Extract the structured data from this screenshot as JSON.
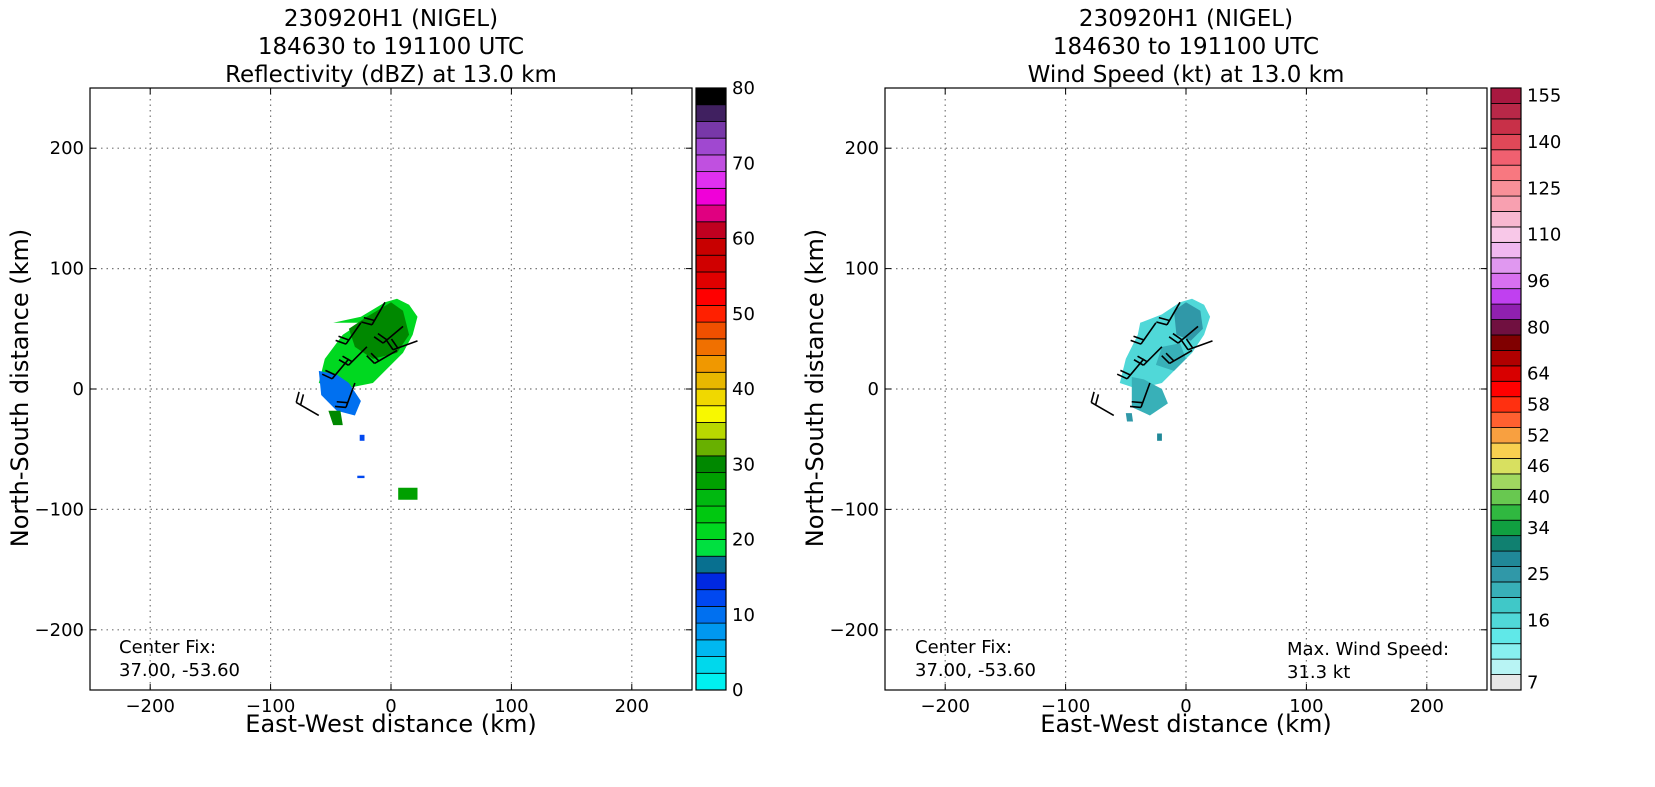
{
  "chart_data": [
    {
      "type": "heatmap",
      "title_lines": [
        "230920H1 (NIGEL)",
        "184630 to 191100 UTC",
        "Reflectivity (dBZ) at 13.0 km"
      ],
      "xlabel": "East-West distance (km)",
      "ylabel": "North-South distance (km)",
      "xlim": [
        -250,
        250
      ],
      "ylim": [
        -250,
        250
      ],
      "xticks": [
        -200,
        -100,
        0,
        100,
        200
      ],
      "yticks": [
        -200,
        -100,
        0,
        100,
        200
      ],
      "xtick_labels": [
        "−200",
        "−100",
        "0",
        "100",
        "200"
      ],
      "ytick_labels": [
        "−200",
        "−100",
        "0",
        "100",
        "200"
      ],
      "grid": true,
      "colorbar": {
        "ticks": [
          0,
          10,
          20,
          30,
          40,
          50,
          60,
          70,
          80
        ],
        "tick_labels": [
          "0",
          "10",
          "20",
          "30",
          "40",
          "50",
          "60",
          "70",
          "80"
        ],
        "colors": [
          "#00f0f0",
          "#00d8ec",
          "#00b8f0",
          "#0098f0",
          "#0070f0",
          "#0048f0",
          "#0028e0",
          "#087090",
          "#00e040",
          "#00d820",
          "#00c810",
          "#00b810",
          "#00a000",
          "#008800",
          "#68b000",
          "#b8d800",
          "#f8f800",
          "#f0d800",
          "#e8b800",
          "#f09800",
          "#f07000",
          "#f05000",
          "#ff2000",
          "#ff0000",
          "#e00000",
          "#d00000",
          "#c80000",
          "#c00020",
          "#e00080",
          "#f000d8",
          "#e030f0",
          "#c050e0",
          "#a048d0",
          "#7838a8",
          "#402060",
          "#000000"
        ]
      },
      "echo_regions": [
        {
          "x": [
            -48,
            -25,
            -5,
            5,
            15,
            22,
            18,
            10,
            0,
            -15,
            -40,
            -60,
            -55,
            -40,
            -25
          ],
          "y": [
            55,
            60,
            72,
            75,
            70,
            60,
            45,
            30,
            20,
            5,
            0,
            5,
            25,
            45,
            55
          ],
          "value": 9
        },
        {
          "x": [
            -20,
            0,
            10,
            15,
            5,
            -15,
            -30,
            -35
          ],
          "y": [
            60,
            72,
            65,
            45,
            30,
            25,
            35,
            50
          ],
          "value": 13
        },
        {
          "x": [
            -60,
            -45,
            -35,
            -25,
            -30,
            -45,
            -58
          ],
          "y": [
            15,
            12,
            5,
            -10,
            -22,
            -18,
            -5
          ],
          "value": 4
        },
        {
          "x": [
            -52,
            -42,
            -40,
            -48
          ],
          "y": [
            -18,
            -18,
            -30,
            -30
          ],
          "value": 13
        },
        {
          "x": [
            6,
            22,
            22,
            6
          ],
          "y": [
            -82,
            -82,
            -92,
            -92
          ],
          "value": 12
        },
        {
          "x": [
            -26,
            -22,
            -22,
            -26
          ],
          "y": [
            -38,
            -38,
            -43,
            -43
          ],
          "value": 5
        },
        {
          "x": [
            -28,
            -22,
            -22,
            -28
          ],
          "y": [
            -72,
            -72,
            -74,
            -74
          ],
          "value": 5
        }
      ],
      "wind_barbs": [
        {
          "x": -5,
          "y": 72,
          "dir_deg": 210
        },
        {
          "x": 10,
          "y": 52,
          "dir_deg": 230
        },
        {
          "x": 22,
          "y": 40,
          "dir_deg": 250
        },
        {
          "x": -25,
          "y": 55,
          "dir_deg": 215
        },
        {
          "x": -20,
          "y": 35,
          "dir_deg": 225
        },
        {
          "x": 5,
          "y": 32,
          "dir_deg": 240
        },
        {
          "x": -35,
          "y": 25,
          "dir_deg": 220
        },
        {
          "x": -30,
          "y": 5,
          "dir_deg": 200
        },
        {
          "x": -60,
          "y": -22,
          "dir_deg": 300
        }
      ],
      "annotation_lines": [
        "Center Fix:",
        "37.00, -53.60"
      ]
    },
    {
      "type": "heatmap",
      "title_lines": [
        "230920H1 (NIGEL)",
        "184630 to 191100 UTC",
        "Wind Speed (kt) at 13.0 km"
      ],
      "xlabel": "East-West distance (km)",
      "ylabel": "North-South distance (km)",
      "xlim": [
        -250,
        250
      ],
      "ylim": [
        -250,
        250
      ],
      "xticks": [
        -200,
        -100,
        0,
        100,
        200
      ],
      "yticks": [
        -200,
        -100,
        0,
        100,
        200
      ],
      "xtick_labels": [
        "−200",
        "−100",
        "0",
        "100",
        "200"
      ],
      "ytick_labels": [
        "−200",
        "−100",
        "0",
        "100",
        "200"
      ],
      "grid": true,
      "colorbar": {
        "tick_labels": [
          "7",
          "16",
          "25",
          "34",
          "40",
          "46",
          "52",
          "58",
          "64",
          "80",
          "96",
          "110",
          "125",
          "140",
          "155"
        ],
        "tick_levels": [
          0,
          4,
          7,
          10,
          12,
          14,
          16,
          18,
          20,
          23,
          26,
          29,
          32,
          35,
          38
        ],
        "colors": [
          "#e8e8e8",
          "#b8f4f4",
          "#88f0f0",
          "#60e8e8",
          "#50d8d8",
          "#40c8c8",
          "#38b0b8",
          "#3098a8",
          "#208898",
          "#108070",
          "#10a040",
          "#30b840",
          "#68c850",
          "#a0d860",
          "#d8e060",
          "#f8d050",
          "#f8a040",
          "#ff6030",
          "#ff3010",
          "#ff0000",
          "#d80000",
          "#b00000",
          "#800000",
          "#701040",
          "#9020b0",
          "#c040f0",
          "#d870f0",
          "#e098f0",
          "#f0b8f0",
          "#f8c8e8",
          "#f8b8d0",
          "#f8a0b0",
          "#f89098",
          "#f87880",
          "#f06070",
          "#e04858",
          "#c83048",
          "#b82848",
          "#a81840"
        ]
      },
      "echo_regions": [
        {
          "x": [
            -38,
            -20,
            -5,
            5,
            15,
            20,
            15,
            5,
            -5,
            -20,
            -40,
            -55,
            -50,
            -40
          ],
          "y": [
            55,
            62,
            72,
            75,
            70,
            60,
            45,
            30,
            20,
            5,
            0,
            5,
            25,
            45
          ],
          "value": 4
        },
        {
          "x": [
            -10,
            0,
            12,
            14,
            4,
            -8
          ],
          "y": [
            65,
            72,
            65,
            50,
            40,
            45
          ],
          "value": 7
        },
        {
          "x": [
            -20,
            -5,
            0,
            -10,
            -25
          ],
          "y": [
            35,
            38,
            25,
            15,
            20
          ],
          "value": 6
        },
        {
          "x": [
            -45,
            -35,
            -20,
            -15,
            -30,
            -45
          ],
          "y": [
            10,
            8,
            0,
            -12,
            -22,
            -15
          ],
          "value": 6
        },
        {
          "x": [
            -50,
            -45,
            -44,
            -49
          ],
          "y": [
            -20,
            -20,
            -27,
            -27
          ],
          "value": 7
        },
        {
          "x": [
            -24,
            -20,
            -20,
            -24
          ],
          "y": [
            -37,
            -37,
            -43,
            -43
          ],
          "value": 8
        }
      ],
      "wind_barbs": [
        {
          "x": -5,
          "y": 72,
          "dir_deg": 210
        },
        {
          "x": 10,
          "y": 52,
          "dir_deg": 230
        },
        {
          "x": 22,
          "y": 40,
          "dir_deg": 250
        },
        {
          "x": -25,
          "y": 55,
          "dir_deg": 215
        },
        {
          "x": -20,
          "y": 35,
          "dir_deg": 225
        },
        {
          "x": 5,
          "y": 32,
          "dir_deg": 240
        },
        {
          "x": -35,
          "y": 25,
          "dir_deg": 220
        },
        {
          "x": -30,
          "y": 5,
          "dir_deg": 200
        },
        {
          "x": -60,
          "y": -22,
          "dir_deg": 300
        }
      ],
      "annotation_lines": [
        "Center Fix:",
        "37.00, -53.60"
      ],
      "annotation2_lines": [
        "Max. Wind Speed:",
        "31.3 kt"
      ]
    }
  ]
}
